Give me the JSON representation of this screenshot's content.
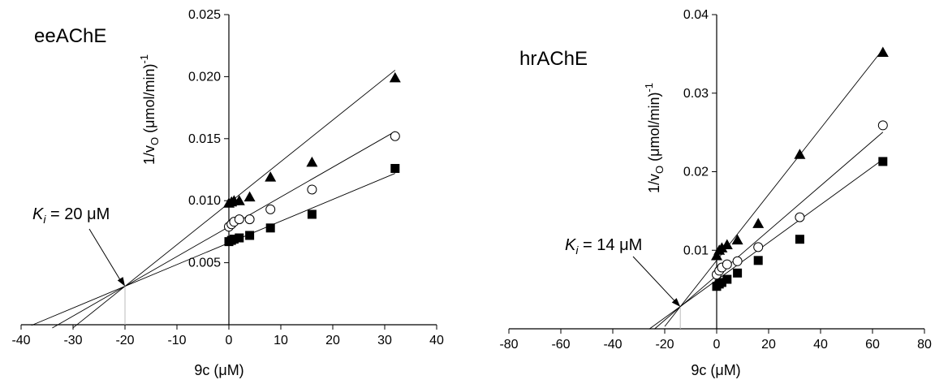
{
  "chart_data": [
    {
      "type": "scatter",
      "title": "eeAChE",
      "xlabel": "9c (μM)",
      "ylabel_main": "1/v",
      "ylabel_sub": "O",
      "ylabel_units": " (μmol/min)",
      "ylabel_sup": "-1",
      "xlim": [
        -40,
        40
      ],
      "ylim": [
        0,
        0.025
      ],
      "xticks": [
        -40,
        -30,
        -20,
        -10,
        0,
        10,
        20,
        30,
        40
      ],
      "yticks": [
        0.005,
        0.01,
        0.015,
        0.02,
        0.025
      ],
      "xtick_labels": [
        "-40",
        "-30",
        "-20",
        "-10",
        "0",
        "10",
        "20",
        "30",
        "40"
      ],
      "ytick_labels": [
        "0.005",
        "0.010",
        "0.015",
        "0.020",
        "0.025"
      ],
      "annotation": {
        "prefix": "K",
        "sub": "i",
        "value": " = 20 μM",
        "point": [
          -20,
          0.0031
        ]
      },
      "series": [
        {
          "marker": "square",
          "x": [
            0,
            0.5,
            1,
            2,
            4,
            8,
            16,
            32
          ],
          "y": [
            0.0067,
            0.0068,
            0.0069,
            0.007,
            0.0072,
            0.0078,
            0.0089,
            0.0126
          ],
          "fit": {
            "slope": 0.000175,
            "intercept": 0.0066,
            "x0": -38
          }
        },
        {
          "marker": "circle",
          "x": [
            0,
            0.5,
            1,
            2,
            4,
            8,
            16,
            32
          ],
          "y": [
            0.0079,
            0.0081,
            0.0083,
            0.0085,
            0.0085,
            0.0093,
            0.0109,
            0.0152
          ],
          "fit": {
            "slope": 0.00024,
            "intercept": 0.0079,
            "x0": -34
          }
        },
        {
          "marker": "triangle",
          "x": [
            0,
            0.5,
            1,
            2,
            4,
            8,
            16,
            32
          ],
          "y": [
            0.0098,
            0.0099,
            0.01,
            0.01,
            0.0103,
            0.0119,
            0.0131,
            0.0199
          ],
          "fit": {
            "slope": 0.000335,
            "intercept": 0.0098,
            "x0": -30
          }
        }
      ]
    },
    {
      "type": "scatter",
      "title": "hrAChE",
      "xlabel": "9c (μM)",
      "ylabel_main": "1/v",
      "ylabel_sub": "O",
      "ylabel_units": " (μmol/min)",
      "ylabel_sup": "-1",
      "xlim": [
        -80,
        80
      ],
      "ylim": [
        0,
        0.04
      ],
      "xticks": [
        -80,
        -60,
        -40,
        -20,
        0,
        20,
        40,
        60,
        80
      ],
      "yticks": [
        0.01,
        0.02,
        0.03,
        0.04
      ],
      "xtick_labels": [
        "-80",
        "-60",
        "-40",
        "-20",
        "0",
        "20",
        "40",
        "60",
        "80"
      ],
      "ytick_labels": [
        "0.01",
        "0.02",
        "0.03",
        "0.04"
      ],
      "annotation": {
        "prefix": "K",
        "sub": "i",
        "value": " = 14 μM",
        "point": [
          -14,
          0.0028
        ]
      },
      "series": [
        {
          "marker": "square",
          "x": [
            0,
            1,
            2,
            4,
            8,
            16,
            32,
            64
          ],
          "y": [
            0.0054,
            0.0057,
            0.0059,
            0.0063,
            0.0071,
            0.0087,
            0.0114,
            0.0213
          ],
          "fit": {
            "slope": 0.00024,
            "intercept": 0.0062,
            "x0": -26
          }
        },
        {
          "marker": "circle",
          "x": [
            0,
            1,
            2,
            4,
            8,
            16,
            32,
            64
          ],
          "y": [
            0.0069,
            0.0074,
            0.0078,
            0.0082,
            0.0086,
            0.0104,
            0.0142,
            0.0259
          ],
          "fit": {
            "slope": 0.000285,
            "intercept": 0.0068,
            "x0": -24
          }
        },
        {
          "marker": "triangle",
          "x": [
            0,
            1,
            2,
            4,
            8,
            16,
            32,
            64
          ],
          "y": [
            0.0093,
            0.01,
            0.0103,
            0.0107,
            0.0113,
            0.0134,
            0.0222,
            0.0352
          ],
          "fit": {
            "slope": 0.00042,
            "intercept": 0.0087,
            "x0": -20
          }
        }
      ]
    }
  ]
}
